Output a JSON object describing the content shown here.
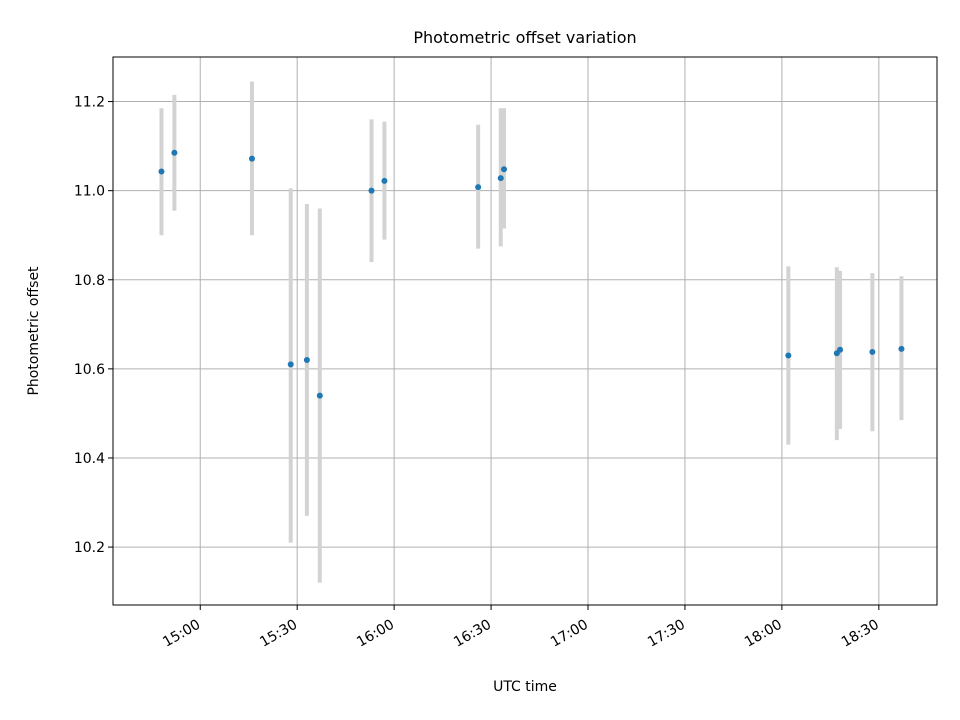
{
  "chart_data": {
    "type": "scatter",
    "title": "Photometric offset variation",
    "xlabel": "UTC time",
    "ylabel": "Photometric offset",
    "x_unit": "UTC time (HH:MM)",
    "xlim": [
      "14:33",
      "18:48"
    ],
    "ylim": [
      10.07,
      11.3
    ],
    "grid": true,
    "x_ticks": [
      "15:00",
      "15:30",
      "16:00",
      "16:30",
      "17:00",
      "17:30",
      "18:00",
      "18:30"
    ],
    "y_ticks": [
      "10.2",
      "10.4",
      "10.6",
      "10.8",
      "11.0",
      "11.2"
    ],
    "marker_color": "#1f77b4",
    "errorbar_color": "#d3d3d3",
    "grid_color": "#b0b0b0",
    "series": [
      {
        "points": [
          {
            "x": "14:48",
            "y": 11.043,
            "ylo": 10.9,
            "yhi": 11.185
          },
          {
            "x": "14:52",
            "y": 11.085,
            "ylo": 10.955,
            "yhi": 11.215
          },
          {
            "x": "15:16",
            "y": 11.072,
            "ylo": 10.9,
            "yhi": 11.245
          },
          {
            "x": "15:28",
            "y": 10.61,
            "ylo": 10.21,
            "yhi": 11.005
          },
          {
            "x": "15:33",
            "y": 10.62,
            "ylo": 10.27,
            "yhi": 10.97
          },
          {
            "x": "15:37",
            "y": 10.54,
            "ylo": 10.12,
            "yhi": 10.96
          },
          {
            "x": "15:53",
            "y": 11.0,
            "ylo": 10.84,
            "yhi": 11.16
          },
          {
            "x": "15:57",
            "y": 11.022,
            "ylo": 10.89,
            "yhi": 11.155
          },
          {
            "x": "16:26",
            "y": 11.008,
            "ylo": 10.87,
            "yhi": 11.148
          },
          {
            "x": "16:33",
            "y": 11.028,
            "ylo": 10.875,
            "yhi": 11.185
          },
          {
            "x": "16:34",
            "y": 11.048,
            "ylo": 10.915,
            "yhi": 11.185
          },
          {
            "x": "18:02",
            "y": 10.63,
            "ylo": 10.43,
            "yhi": 10.83
          },
          {
            "x": "18:17",
            "y": 10.635,
            "ylo": 10.44,
            "yhi": 10.828
          },
          {
            "x": "18:18",
            "y": 10.643,
            "ylo": 10.465,
            "yhi": 10.82
          },
          {
            "x": "18:28",
            "y": 10.638,
            "ylo": 10.46,
            "yhi": 10.815
          },
          {
            "x": "18:37",
            "y": 10.645,
            "ylo": 10.485,
            "yhi": 10.808
          }
        ]
      }
    ]
  }
}
